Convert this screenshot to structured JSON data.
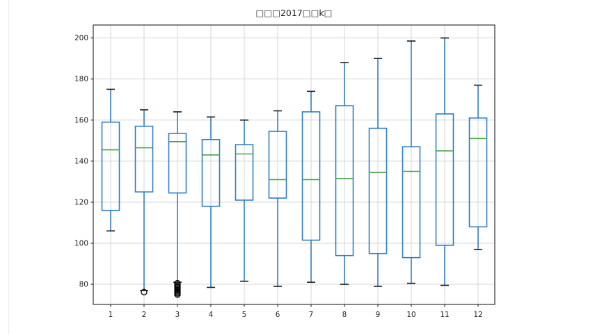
{
  "chart_data": {
    "type": "boxplot",
    "title": "□□□2017□□k□",
    "xlabel": "",
    "ylabel": "",
    "grid": true,
    "legend": false,
    "categories": [
      "1",
      "2",
      "3",
      "4",
      "5",
      "6",
      "7",
      "8",
      "9",
      "10",
      "11",
      "12"
    ],
    "yticks": [
      80,
      100,
      120,
      140,
      160,
      180,
      200
    ],
    "ylim": [
      70.2,
      206.3
    ],
    "boxes": [
      {
        "category": "1",
        "whisker_low": 106,
        "q1": 116,
        "median": 145.5,
        "q3": 159,
        "whisker_high": 175,
        "outliers": []
      },
      {
        "category": "2",
        "whisker_low": 77,
        "q1": 125,
        "median": 146.5,
        "q3": 157,
        "whisker_high": 165,
        "outliers": [
          76.2
        ]
      },
      {
        "category": "3",
        "whisker_low": 81,
        "q1": 124.5,
        "median": 149.5,
        "q3": 153.5,
        "whisker_high": 164,
        "outliers": [
          80.5,
          79.8,
          79.2,
          78.6,
          78,
          77.4,
          76.8,
          76.2,
          75.6,
          75
        ]
      },
      {
        "category": "4",
        "whisker_low": 78.5,
        "q1": 118,
        "median": 143,
        "q3": 150.5,
        "whisker_high": 161.5,
        "outliers": []
      },
      {
        "category": "5",
        "whisker_low": 81.5,
        "q1": 121,
        "median": 143.5,
        "q3": 148,
        "whisker_high": 160,
        "outliers": []
      },
      {
        "category": "6",
        "whisker_low": 79,
        "q1": 122,
        "median": 131,
        "q3": 154.5,
        "whisker_high": 164.5,
        "outliers": []
      },
      {
        "category": "7",
        "whisker_low": 81,
        "q1": 101.5,
        "median": 131,
        "q3": 164,
        "whisker_high": 174,
        "outliers": []
      },
      {
        "category": "8",
        "whisker_low": 80,
        "q1": 94,
        "median": 131.5,
        "q3": 167,
        "whisker_high": 188,
        "outliers": []
      },
      {
        "category": "9",
        "whisker_low": 79,
        "q1": 95,
        "median": 134.5,
        "q3": 156,
        "whisker_high": 190,
        "outliers": []
      },
      {
        "category": "10",
        "whisker_low": 80.5,
        "q1": 93,
        "median": 135,
        "q3": 147,
        "whisker_high": 198.5,
        "outliers": []
      },
      {
        "category": "11",
        "whisker_low": 79.5,
        "q1": 99,
        "median": 145,
        "q3": 163,
        "whisker_high": 200,
        "outliers": []
      },
      {
        "category": "12",
        "whisker_low": 97,
        "q1": 108,
        "median": 151,
        "q3": 161,
        "whisker_high": 177,
        "outliers": []
      }
    ],
    "colors": {
      "box": "#2f7fc1",
      "whisker": "#2f7fc1",
      "median": "#44a546",
      "cap": "#1a1a1a",
      "outlier_edge": "#000000",
      "grid": "#d4d4d4",
      "frame": "#333333",
      "tick_text": "#262626",
      "background": "#ffffff"
    }
  }
}
